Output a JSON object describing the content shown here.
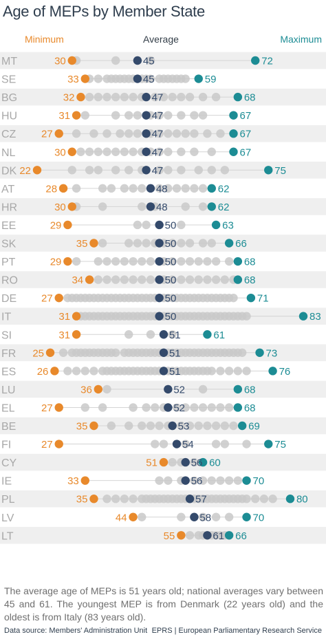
{
  "chart_data": {
    "type": "scatter",
    "title": "Age of MEPs by Member State",
    "legend": [
      "Minimum",
      "Average",
      "Maximum"
    ],
    "x_range": [
      20,
      84
    ],
    "colors": {
      "min": "#e8892b",
      "avg": "#344a6b",
      "max": "#1c8c94",
      "member": "#c9c9c9",
      "band": "#efefef"
    },
    "rows": [
      {
        "country": "MT",
        "min": 30,
        "avg": 45,
        "max": 72,
        "members": [
          31,
          40,
          48
        ]
      },
      {
        "country": "SE",
        "min": 33,
        "avg": 45,
        "max": 59,
        "members": [
          34,
          36,
          38,
          39,
          40,
          41,
          42,
          43,
          44,
          46,
          47,
          48,
          50,
          51,
          52,
          53,
          54,
          55,
          56
        ]
      },
      {
        "country": "BG",
        "min": 32,
        "avg": 47,
        "max": 68,
        "members": [
          34,
          36,
          38,
          40,
          42,
          44,
          46,
          49,
          51,
          53,
          55,
          57,
          60,
          63
        ]
      },
      {
        "country": "HU",
        "min": 31,
        "avg": 47,
        "max": 67,
        "members": [
          33,
          40,
          43,
          45,
          48,
          50,
          52,
          55,
          58,
          60
        ]
      },
      {
        "country": "CZ",
        "min": 27,
        "avg": 47,
        "max": 67,
        "members": [
          31,
          35,
          38,
          41,
          43,
          45,
          48,
          50,
          52,
          54,
          56,
          58,
          61,
          64
        ]
      },
      {
        "country": "NL",
        "min": 30,
        "avg": 47,
        "max": 67,
        "members": [
          32,
          34,
          36,
          38,
          40,
          42,
          44,
          46,
          48,
          50,
          52,
          55,
          58,
          62
        ]
      },
      {
        "country": "DK",
        "min": 22,
        "avg": 47,
        "max": 75,
        "members": [
          30,
          34,
          36,
          40,
          43,
          46,
          50,
          52,
          55,
          59,
          62,
          65
        ]
      },
      {
        "country": "AT",
        "min": 28,
        "avg": 48,
        "max": 62,
        "members": [
          31,
          37,
          39,
          42,
          44,
          46,
          50,
          52,
          54,
          56,
          58,
          60
        ]
      },
      {
        "country": "HR",
        "min": 30,
        "avg": 48,
        "max": 62,
        "members": [
          31,
          37,
          46,
          49,
          56,
          60
        ]
      },
      {
        "country": "EE",
        "min": 29,
        "avg": 50,
        "max": 63,
        "members": [
          45,
          47,
          55
        ]
      },
      {
        "country": "SK",
        "min": 35,
        "avg": 50,
        "max": 66,
        "members": [
          37,
          43,
          45,
          47,
          49,
          51,
          53,
          55,
          57,
          60,
          62
        ]
      },
      {
        "country": "PT",
        "min": 29,
        "avg": 50,
        "max": 68,
        "members": [
          31,
          36,
          38,
          40,
          42,
          44,
          46,
          48,
          51,
          53,
          55,
          57,
          59,
          61,
          63,
          66
        ]
      },
      {
        "country": "RO",
        "min": 34,
        "avg": 50,
        "max": 68,
        "members": [
          36,
          38,
          40,
          42,
          44,
          46,
          48,
          51,
          53,
          55,
          57,
          59,
          61,
          63,
          65,
          67
        ]
      },
      {
        "country": "DE",
        "min": 27,
        "avg": 50,
        "max": 71,
        "members": [
          29,
          30,
          31,
          32,
          33,
          34,
          35,
          36,
          37,
          38,
          39,
          40,
          41,
          42,
          43,
          44,
          45,
          46,
          47,
          48,
          49,
          51,
          52,
          53,
          54,
          55,
          56,
          57,
          58,
          59,
          60,
          61,
          62,
          63,
          64,
          65,
          66,
          67
        ]
      },
      {
        "country": "IT",
        "min": 31,
        "avg": 50,
        "max": 83,
        "members": [
          32,
          33,
          34,
          35,
          36,
          37,
          38,
          39,
          40,
          41,
          42,
          43,
          44,
          45,
          46,
          47,
          48,
          49,
          51,
          52,
          53,
          54,
          55,
          56,
          57,
          58,
          59,
          60,
          61,
          62,
          63,
          64,
          65,
          66,
          67,
          68,
          69,
          70
        ]
      },
      {
        "country": "SI",
        "min": 31,
        "avg": 51,
        "max": 61,
        "members": [
          43,
          48,
          53
        ]
      },
      {
        "country": "FR",
        "min": 25,
        "avg": 51,
        "max": 73,
        "members": [
          28,
          30,
          31,
          32,
          33,
          34,
          35,
          36,
          37,
          38,
          39,
          40,
          42,
          43,
          44,
          45,
          46,
          47,
          48,
          49,
          50,
          52,
          53,
          54,
          55,
          56,
          57,
          58,
          59,
          60,
          61,
          62,
          63,
          64,
          65,
          66,
          67,
          68,
          69
        ]
      },
      {
        "country": "ES",
        "min": 26,
        "avg": 51,
        "max": 76,
        "members": [
          29,
          31,
          33,
          35,
          37,
          38,
          39,
          40,
          41,
          42,
          43,
          44,
          45,
          46,
          47,
          48,
          49,
          50,
          52,
          53,
          54,
          55,
          56,
          57,
          58,
          59,
          60,
          61,
          62,
          64,
          66,
          68,
          70
        ]
      },
      {
        "country": "LU",
        "min": 36,
        "avg": 52,
        "max": 68,
        "members": [
          38,
          60
        ]
      },
      {
        "country": "EL",
        "min": 27,
        "avg": 52,
        "max": 68,
        "members": [
          33,
          37,
          44,
          47,
          49,
          51,
          54,
          56,
          58,
          60,
          62,
          64,
          66
        ]
      },
      {
        "country": "BE",
        "min": 35,
        "avg": 53,
        "max": 69,
        "members": [
          39,
          43,
          46,
          48,
          50,
          52,
          55,
          57,
          59,
          61,
          63,
          65,
          67
        ]
      },
      {
        "country": "FI",
        "min": 27,
        "avg": 54,
        "max": 75,
        "members": [
          49,
          51,
          56,
          63,
          65,
          70
        ]
      },
      {
        "country": "CY",
        "min": 51,
        "avg": 56,
        "max": 60,
        "members": [
          53,
          55,
          58
        ]
      },
      {
        "country": "IE",
        "min": 33,
        "avg": 56,
        "max": 70,
        "members": [
          50,
          52,
          55,
          58,
          60,
          62,
          64,
          66,
          68
        ]
      },
      {
        "country": "PL",
        "min": 35,
        "avg": 57,
        "max": 80,
        "members": [
          38,
          40,
          42,
          44,
          46,
          47,
          48,
          49,
          50,
          51,
          52,
          53,
          54,
          55,
          56,
          58,
          59,
          60,
          61,
          62,
          63,
          64,
          65,
          66,
          67,
          68,
          69,
          70,
          72,
          74,
          76
        ]
      },
      {
        "country": "LV",
        "min": 44,
        "avg": 58,
        "max": 70,
        "members": [
          46,
          55,
          60,
          63,
          66
        ]
      },
      {
        "country": "LT",
        "min": 55,
        "avg": 61,
        "max": 66,
        "members": [
          57,
          59,
          60,
          62,
          63,
          64,
          65
        ]
      }
    ]
  },
  "summary": "The average age of MEPs is 51 years old; national averages vary between 45 and 61. The youngest MEP is from Denmark (22 years old) and the oldest is from Italy (83 years old).",
  "source": "Data source:  Members' Administration Unit",
  "credit": "EPRS | European Parliamentary Research Service"
}
